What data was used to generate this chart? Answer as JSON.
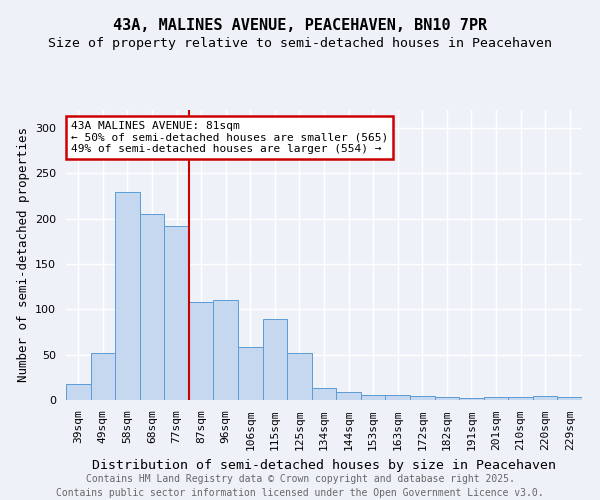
{
  "title1": "43A, MALINES AVENUE, PEACEHAVEN, BN10 7PR",
  "title2": "Size of property relative to semi-detached houses in Peacehaven",
  "xlabel": "Distribution of semi-detached houses by size in Peacehaven",
  "ylabel": "Number of semi-detached properties",
  "categories": [
    "39sqm",
    "49sqm",
    "58sqm",
    "68sqm",
    "77sqm",
    "87sqm",
    "96sqm",
    "106sqm",
    "115sqm",
    "125sqm",
    "134sqm",
    "144sqm",
    "153sqm",
    "163sqm",
    "172sqm",
    "182sqm",
    "191sqm",
    "201sqm",
    "210sqm",
    "220sqm",
    "229sqm"
  ],
  "values": [
    18,
    52,
    230,
    205,
    192,
    108,
    110,
    59,
    89,
    52,
    13,
    9,
    5,
    5,
    4,
    3,
    2,
    3,
    3,
    4,
    3
  ],
  "bar_color": "#c5d8f0",
  "bar_edge_color": "#5b9bd5",
  "annotation_line1": "43A MALINES AVENUE: 81sqm",
  "annotation_line2": "← 50% of semi-detached houses are smaller (565)",
  "annotation_line3": "49% of semi-detached houses are larger (554) →",
  "annotation_box_facecolor": "#ffffff",
  "annotation_box_edgecolor": "#cc0000",
  "vline_x": 4.5,
  "vline_color": "#cc0000",
  "ylim": [
    0,
    320
  ],
  "yticks": [
    0,
    50,
    100,
    150,
    200,
    250,
    300
  ],
  "footer1": "Contains HM Land Registry data © Crown copyright and database right 2025.",
  "footer2": "Contains public sector information licensed under the Open Government Licence v3.0.",
  "background_color": "#eef2f8",
  "grid_color": "#ffffff",
  "title_fontsize": 11,
  "subtitle_fontsize": 9.5,
  "tick_fontsize": 8,
  "ylabel_fontsize": 9,
  "xlabel_fontsize": 9.5,
  "annotation_fontsize": 8,
  "footer_fontsize": 7
}
